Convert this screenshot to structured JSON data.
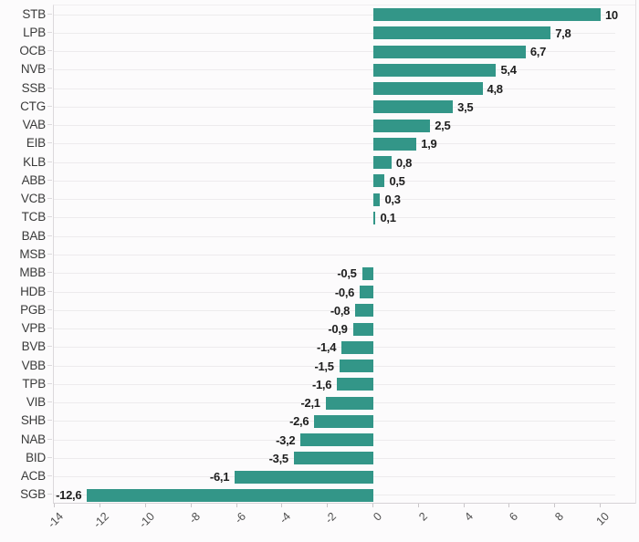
{
  "chart_data": {
    "type": "bar",
    "orientation": "horizontal",
    "title": "",
    "xlabel": "",
    "ylabel": "",
    "categories": [
      "STB",
      "LPB",
      "OCB",
      "NVB",
      "SSB",
      "CTG",
      "VAB",
      "EIB",
      "KLB",
      "ABB",
      "VCB",
      "TCB",
      "BAB",
      "MSB",
      "MBB",
      "HDB",
      "PGB",
      "VPB",
      "BVB",
      "VBB",
      "TPB",
      "VIB",
      "SHB",
      "NAB",
      "BID",
      "ACB",
      "SGB"
    ],
    "values": [
      10,
      7.8,
      6.7,
      5.4,
      4.8,
      3.5,
      2.5,
      1.9,
      0.8,
      0.5,
      0.3,
      0.1,
      null,
      null,
      -0.5,
      -0.6,
      -0.8,
      -0.9,
      -1.4,
      -1.5,
      -1.6,
      -2.1,
      -2.6,
      -3.2,
      -3.5,
      -6.1,
      -12.6
    ],
    "value_labels": [
      "10",
      "7,8",
      "6,7",
      "5,4",
      "4,8",
      "3,5",
      "2,5",
      "1,9",
      "0,8",
      "0,5",
      "0,3",
      "0,1",
      "",
      "",
      "-0,5",
      "-0,6",
      "-0,8",
      "-0,9",
      "-1,4",
      "-1,5",
      "-1,6",
      "-2,1",
      "-2,6",
      "-3,2",
      "-3,5",
      "-6,1",
      "-12,6"
    ],
    "x_ticks": [
      -14,
      -12,
      -10,
      -8,
      -6,
      -4,
      -2,
      0,
      2,
      4,
      6,
      8,
      10
    ],
    "x_tick_labels": [
      "-14",
      "-12",
      "-10",
      "-8",
      "-6",
      "-4",
      "-2",
      "0",
      "2",
      "4",
      "6",
      "8",
      "10"
    ],
    "xlim": [
      -14.1,
      11.6
    ],
    "grid": true,
    "legend": "none",
    "colors": {
      "bar": "#339688",
      "value_label": "#1d1d1d",
      "category_label": "#3a3a3a",
      "tick_label": "#4d4d4d",
      "gridline": "#edebed",
      "background": "#fcfbfc"
    }
  }
}
